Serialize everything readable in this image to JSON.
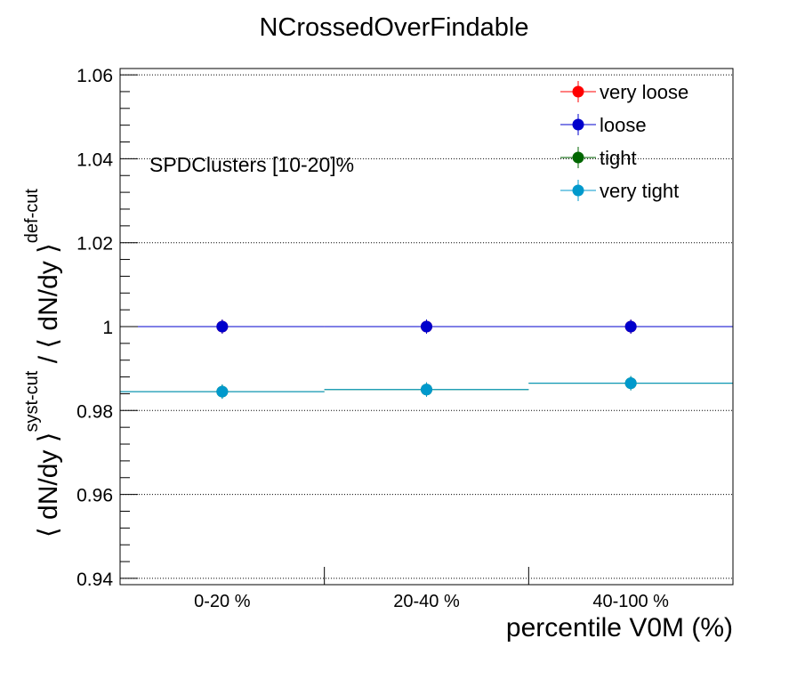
{
  "chart_data": {
    "type": "scatter",
    "title": "NCrossedOverFindable",
    "xlabel": "percentile V0M (%)",
    "ylabel_parts": {
      "lead": "⟨ dN/dy ⟩",
      "sup1": "syst-cut",
      "mid": " / ⟨ dN/dy ⟩",
      "sup2": "def-cut"
    },
    "annotation": "SPDClusters [10-20]%",
    "categories": [
      "0-20 %",
      "20-40 %",
      "40-100 %"
    ],
    "ylim": [
      0.9385,
      1.0615
    ],
    "yticks": [
      0.94,
      0.96,
      0.98,
      1,
      1.02,
      1.04,
      1.06
    ],
    "ytick_labels": [
      "0.94",
      "0.96",
      "0.98",
      "1",
      "1.02",
      "1.04",
      "1.06"
    ],
    "grid": true,
    "legend_position": "top-right",
    "series": [
      {
        "name": "very loose",
        "color": "#ff0000",
        "values": [
          1.0,
          1.0,
          1.0
        ]
      },
      {
        "name": "loose",
        "color": "#0000cc",
        "values": [
          1.0,
          1.0,
          1.0
        ]
      },
      {
        "name": "tight",
        "color": "#006600",
        "values": [
          0.9845,
          0.985,
          0.9865
        ]
      },
      {
        "name": "very tight",
        "color": "#0099cc",
        "values": [
          0.9845,
          0.985,
          0.9865
        ]
      }
    ]
  }
}
